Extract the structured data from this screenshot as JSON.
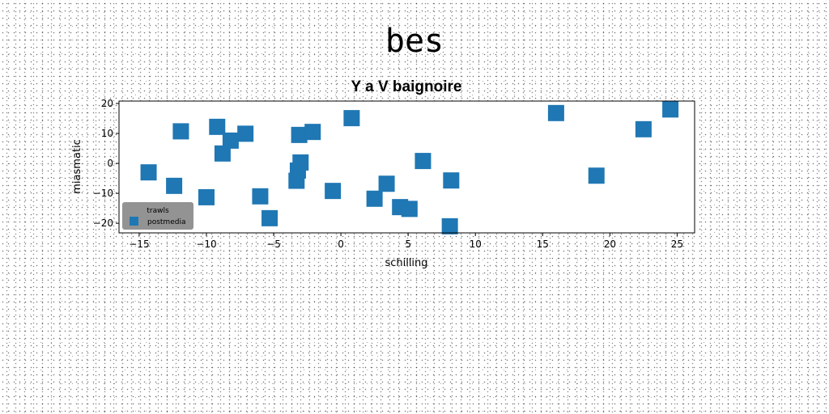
{
  "figure": {
    "suptitle": "bes"
  },
  "chart_data": {
    "type": "scatter",
    "title": "Y a V baignoire",
    "xlabel": "schilling",
    "ylabel": "miasmatic",
    "xlim": [
      -16.5,
      26.3
    ],
    "ylim": [
      -23.2,
      20.8
    ],
    "xticks": [
      -15,
      -10,
      -5,
      0,
      5,
      10,
      15,
      20,
      25
    ],
    "yticks": [
      -20,
      -10,
      0,
      10,
      20
    ],
    "grid": false,
    "legend": {
      "title": "trawls",
      "placement": "lower-left",
      "background": "#808080"
    },
    "series": [
      {
        "name": "postmedia",
        "marker": "square",
        "color": "#1f77b4",
        "x": [
          -14.3,
          -12.4,
          -11.9,
          -10.0,
          -9.2,
          -8.8,
          -8.2,
          -7.1,
          -6.0,
          -5.3,
          -3.3,
          -3.2,
          -3.0,
          -3.1,
          -2.1,
          -0.6,
          0.8,
          2.5,
          3.4,
          4.4,
          5.1,
          6.1,
          8.2,
          8.1,
          16.0,
          19.0,
          22.5,
          24.5
        ],
        "y": [
          -3.0,
          -7.5,
          10.7,
          -11.3,
          12.2,
          3.3,
          7.6,
          9.9,
          -11.0,
          -18.3,
          -5.8,
          -2.4,
          0.3,
          9.5,
          10.5,
          -9.2,
          15.1,
          -11.8,
          -6.8,
          -14.6,
          -15.2,
          0.8,
          -5.7,
          -21.0,
          16.8,
          -4.1,
          11.4,
          18.0
        ]
      }
    ]
  }
}
